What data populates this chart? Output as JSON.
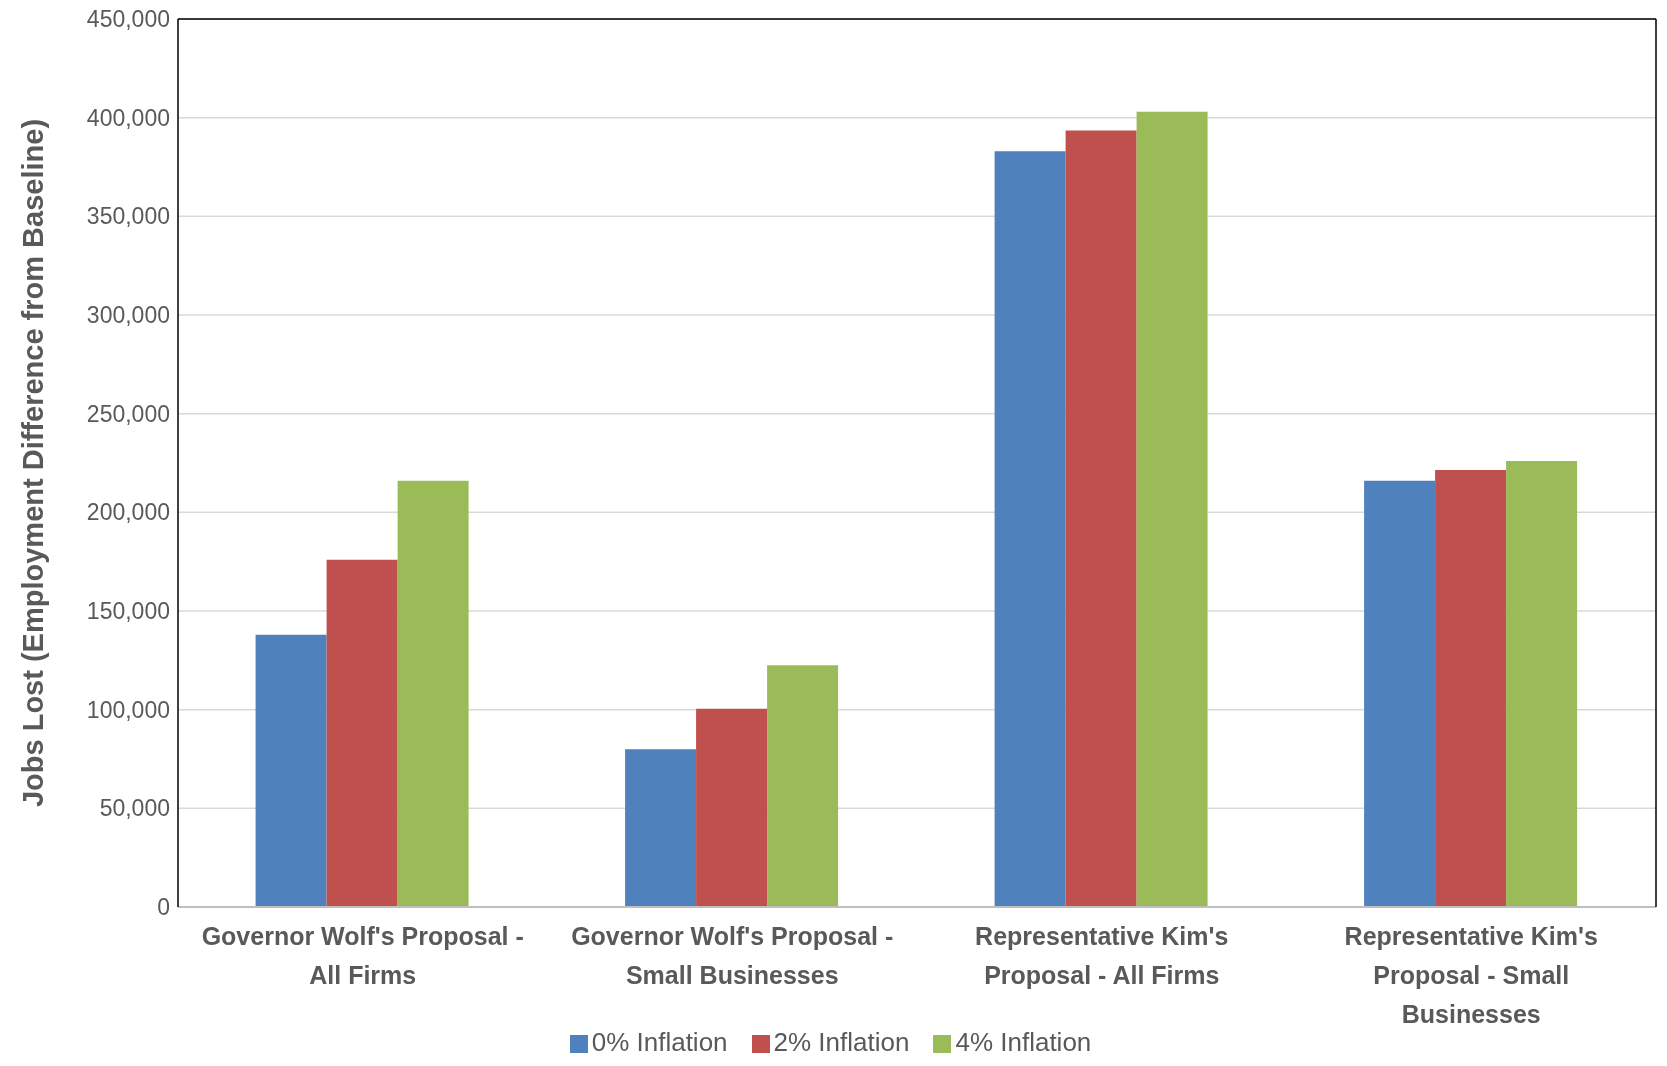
{
  "chart_data": {
    "type": "bar",
    "ylabel": "Jobs Lost (Employment Difference from Baseline)",
    "categories": [
      "Governor Wolf's Proposal - All Firms",
      "Governor Wolf's Proposal - Small Businesses",
      "Representative Kim's Proposal - All Firms",
      "Representative Kim's Proposal - Small Businesses"
    ],
    "series": [
      {
        "name": "0% Inflation",
        "color": "#4f81bd",
        "values": [
          138000,
          80000,
          383000,
          216000
        ]
      },
      {
        "name": "2% Inflation",
        "color": "#c0504d",
        "values": [
          176000,
          100500,
          393500,
          221500
        ]
      },
      {
        "name": "4% Inflation",
        "color": "#9bbb59",
        "values": [
          216000,
          122500,
          403000,
          226000
        ]
      }
    ],
    "ylim": [
      0,
      450000
    ],
    "yticks": [
      0,
      {
        "value": 50000,
        "label": "50,000"
      },
      {
        "value": 100000,
        "label": "100,000"
      },
      {
        "value": 150000,
        "label": "150,000"
      },
      {
        "value": 200000,
        "label": "200,000"
      },
      {
        "value": 250000,
        "label": "250,000"
      },
      {
        "value": 300000,
        "label": "300,000"
      },
      {
        "value": 350000,
        "label": "350,000"
      },
      {
        "value": 400000,
        "label": "400,000"
      },
      {
        "value": 450000,
        "label": "450,000"
      }
    ],
    "grid": "y",
    "legend": "bottom"
  }
}
